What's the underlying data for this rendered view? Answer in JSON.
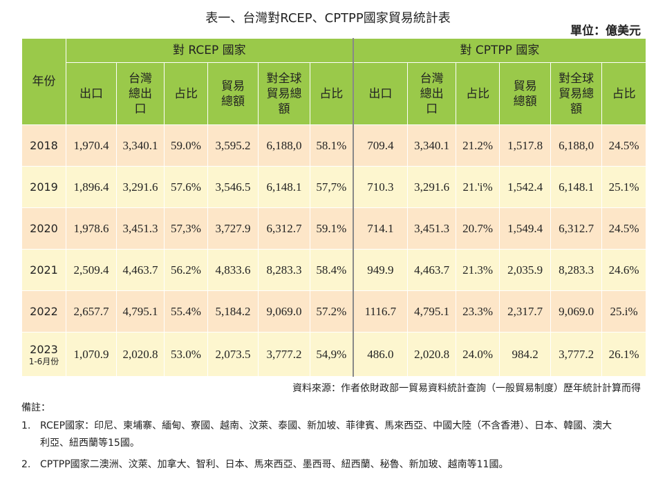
{
  "title": "表一、台灣對RCEP、CPTPP國家貿易統計表",
  "unit": "單位：億美元",
  "table": {
    "year_header": "年份",
    "groups": [
      "對 RCEP 國家",
      "對 CPTPP 國家"
    ],
    "columns": [
      "出口",
      "台灣總出口",
      "占比",
      "貿易總額",
      "對全球貿易總額",
      "占比"
    ],
    "rows": [
      {
        "year": "2018",
        "year_sub": "",
        "rcep": [
          "1,970.4",
          "3,340.1",
          "59.0%",
          "3,595.2",
          "6,188,0",
          "58.1%"
        ],
        "cptpp": [
          "709.4",
          "3,340.1",
          "21.2%",
          "1,517.8",
          "6,188,0",
          "24.5%"
        ]
      },
      {
        "year": "2019",
        "year_sub": "",
        "rcep": [
          "1,896.4",
          "3,291.6",
          "57.6%",
          "3,546.5",
          "6,148.1",
          "57,7%"
        ],
        "cptpp": [
          "710.3",
          "3,291.6",
          "21.'i%",
          "1,542.4",
          "6,148.1",
          "25.1%"
        ]
      },
      {
        "year": "2020",
        "year_sub": "",
        "rcep": [
          "1,978.6",
          "3,451.3",
          "57,3%",
          "3,727.9",
          "6,312.7",
          "59.1%"
        ],
        "cptpp": [
          "714.1",
          "3,451.3",
          "20.7%",
          "1,549.4",
          "6,312.7",
          "24.5%"
        ]
      },
      {
        "year": "2021",
        "year_sub": "",
        "rcep": [
          "2,509.4",
          "4,463.7",
          "56.2%",
          "4,833.6",
          "8,283.3",
          "58.4%"
        ],
        "cptpp": [
          "949.9",
          "4,463.7",
          "21.3%",
          "2,035.9",
          "8,283.3",
          "24.6%"
        ]
      },
      {
        "year": "2022",
        "year_sub": "",
        "rcep": [
          "2,657.7",
          "4,795.1",
          "55.4%",
          "5,184.2",
          "9,069.0",
          "57.2%"
        ],
        "cptpp": [
          "1116.7",
          "4,795.1",
          "23.3%",
          "2,317.7",
          "9,069.0",
          "25.i%"
        ]
      },
      {
        "year": "2023",
        "year_sub": "1-6月份",
        "rcep": [
          "1,070.9",
          "2,020.8",
          "53.0%",
          "2,073.5",
          "3,777.2",
          "54,9%"
        ],
        "cptpp": [
          "486.0",
          "2,020.8",
          "24.0%",
          "984.2",
          "3,777.2",
          "26.1%"
        ]
      }
    ]
  },
  "source": "資料來源：作者依財政部一貿易資料統計查詢（一般貿易制度）歷年統計計算而得",
  "notes": {
    "title": "備註：",
    "items": [
      {
        "num": "1.",
        "line1": "RCEP國家：印尼、柬埔寨、緬甸、寮國、越南、汶萊、泰國、新加坡、菲律賓、馬來西亞、中國大陸（不含香港）、日本、韓國、澳大",
        "line2": "利亞、紐西蘭等15國。"
      },
      {
        "num": "2.",
        "line1": "CPTPP國家二澳洲、汶萊、加拿大、智利、日本、馬來西亞、墨西哥、紐西蘭、秘魯、新加玻、越南等11國。",
        "line2": ""
      }
    ]
  }
}
